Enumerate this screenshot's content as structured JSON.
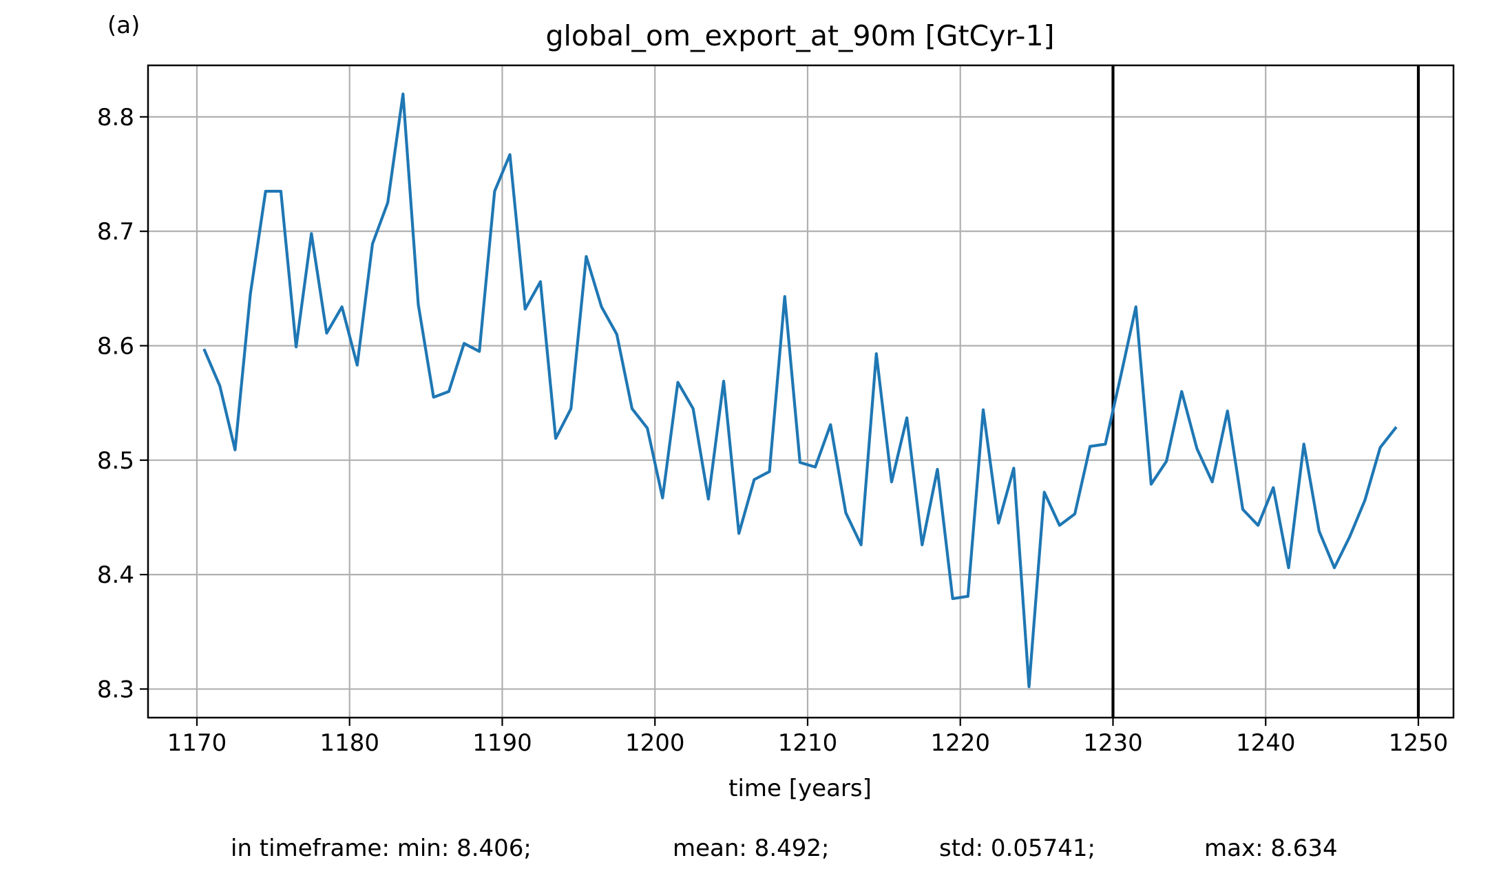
{
  "chart_data": {
    "type": "line",
    "panel_label": "(a)",
    "title": "global_om_export_at_90m [GtCyr-1]",
    "xlabel": "time [years]",
    "ylabel": "",
    "xlim": [
      1166.8,
      1252.3
    ],
    "ylim": [
      8.275,
      8.845
    ],
    "x_ticks": [
      1170,
      1180,
      1190,
      1200,
      1210,
      1220,
      1230,
      1240,
      1250
    ],
    "y_ticks": [
      8.3,
      8.4,
      8.5,
      8.6,
      8.7,
      8.8
    ],
    "grid": true,
    "line_color": "#1f77b4",
    "marker_color": "#000000",
    "vertical_markers": [
      1230,
      1250
    ],
    "series": [
      {
        "x": [
          1170.5,
          1171.5,
          1172.5,
          1173.5,
          1174.5,
          1175.5,
          1176.5,
          1177.5,
          1178.5,
          1179.5,
          1180.5,
          1181.5,
          1182.5,
          1183.5,
          1184.5,
          1185.5,
          1186.5,
          1187.5,
          1188.5,
          1189.5,
          1190.5,
          1191.5,
          1192.5,
          1193.5,
          1194.5,
          1195.5,
          1196.5,
          1197.5,
          1198.5,
          1199.5,
          1200.5,
          1201.5,
          1202.5,
          1203.5,
          1204.5,
          1205.5,
          1206.5,
          1207.5,
          1208.5,
          1209.5,
          1210.5,
          1211.5,
          1212.5,
          1213.5,
          1214.5,
          1215.5,
          1216.5,
          1217.5,
          1218.5,
          1219.5,
          1220.5,
          1221.5,
          1222.5,
          1223.5,
          1224.5,
          1225.5,
          1226.5,
          1227.5,
          1228.5,
          1229.5,
          1230.5,
          1231.5,
          1232.5,
          1233.5,
          1234.5,
          1235.5,
          1236.5,
          1237.5,
          1238.5,
          1239.5,
          1240.5,
          1241.5,
          1242.5,
          1243.5,
          1244.5,
          1245.5,
          1246.5,
          1247.5,
          1248.5
        ],
        "values": [
          8.596,
          8.565,
          8.509,
          8.645,
          8.735,
          8.735,
          8.599,
          8.698,
          8.611,
          8.634,
          8.583,
          8.689,
          8.725,
          8.82,
          8.636,
          8.555,
          8.56,
          8.602,
          8.595,
          8.735,
          8.767,
          8.632,
          8.656,
          8.519,
          8.545,
          8.678,
          8.634,
          8.61,
          8.545,
          8.528,
          8.467,
          8.568,
          8.545,
          8.466,
          8.569,
          8.436,
          8.483,
          8.49,
          8.643,
          8.498,
          8.494,
          8.531,
          8.454,
          8.426,
          8.593,
          8.481,
          8.537,
          8.426,
          8.492,
          8.379,
          8.381,
          8.544,
          8.445,
          8.493,
          8.302,
          8.472,
          8.443,
          8.453,
          8.512,
          8.514,
          8.573,
          8.634,
          8.479,
          8.499,
          8.56,
          8.51,
          8.481,
          8.543,
          8.457,
          8.443,
          8.476,
          8.406,
          8.514,
          8.438,
          8.406,
          8.433,
          8.465,
          8.511,
          8.528
        ]
      }
    ]
  },
  "stats": {
    "min_text": "in timeframe: min: 8.406;",
    "mean_text": "mean: 8.492;",
    "std_text": "std: 0.05741;",
    "max_text": "max: 8.634"
  }
}
